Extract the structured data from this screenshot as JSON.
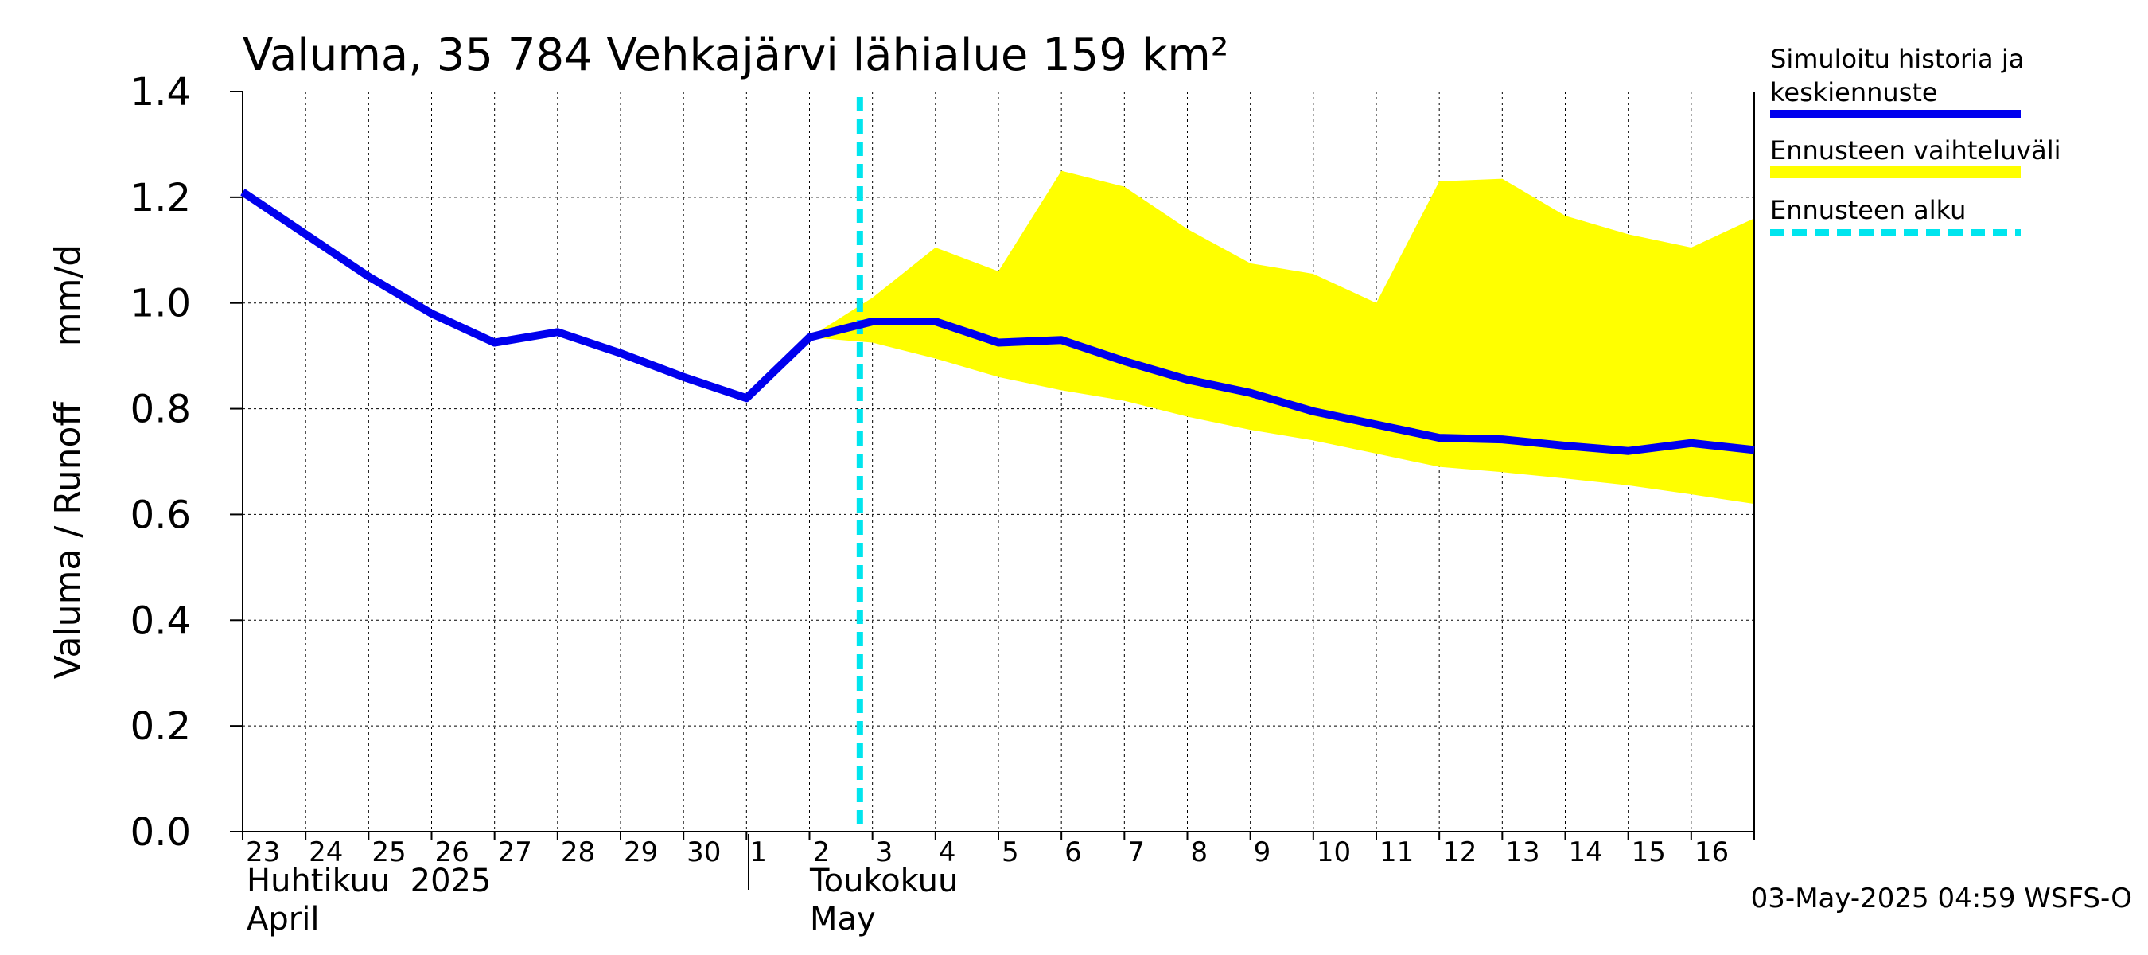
{
  "chart_data": {
    "type": "line",
    "title": "Valuma, 35 784 Vehkajärvi lähialue 159 km²",
    "ylabel": "Valuma / Runoff     mm/d",
    "ylim": [
      0,
      1.4
    ],
    "yticks": [
      0.0,
      0.2,
      0.4,
      0.6,
      0.8,
      1.0,
      1.2,
      1.4
    ],
    "ytick_labels": [
      "0.0",
      "0.2",
      "0.4",
      "0.6",
      "0.8",
      "1.0",
      "1.2",
      "1.4"
    ],
    "x_day_labels": [
      "23",
      "24",
      "25",
      "26",
      "27",
      "28",
      "29",
      "30",
      "1",
      "2",
      "3",
      "4",
      "5",
      "6",
      "7",
      "8",
      "9",
      "10",
      "11",
      "12",
      "13",
      "14",
      "15",
      "16"
    ],
    "month_labels": [
      {
        "fi": "Huhtikuu  2025",
        "en": "April"
      },
      {
        "fi": "Toukokuu",
        "en": "May"
      }
    ],
    "forecast_start": "2025-05-03",
    "series": [
      {
        "name": "Simuloitu historia ja keskiennuste",
        "color": "#0000ee",
        "x": [
          "2025-04-23",
          "2025-04-24",
          "2025-04-25",
          "2025-04-26",
          "2025-04-27",
          "2025-04-28",
          "2025-04-29",
          "2025-04-30",
          "2025-05-01",
          "2025-05-02",
          "2025-05-03",
          "2025-05-04",
          "2025-05-05",
          "2025-05-06",
          "2025-05-07",
          "2025-05-08",
          "2025-05-09",
          "2025-05-10",
          "2025-05-11",
          "2025-05-12",
          "2025-05-13",
          "2025-05-14",
          "2025-05-15",
          "2025-05-16",
          "2025-05-17"
        ],
        "values": [
          1.21,
          1.13,
          1.05,
          0.98,
          0.925,
          0.945,
          0.905,
          0.86,
          0.82,
          0.935,
          0.965,
          0.965,
          0.925,
          0.93,
          0.89,
          0.855,
          0.83,
          0.795,
          0.77,
          0.745,
          0.742,
          0.73,
          0.72,
          0.735,
          0.722
        ]
      },
      {
        "name": "Ennusteen vaihteluväli",
        "color": "#ffff00",
        "x": [
          "2025-05-02",
          "2025-05-03",
          "2025-05-04",
          "2025-05-05",
          "2025-05-06",
          "2025-05-07",
          "2025-05-08",
          "2025-05-09",
          "2025-05-10",
          "2025-05-11",
          "2025-05-12",
          "2025-05-13",
          "2025-05-14",
          "2025-05-15",
          "2025-05-16",
          "2025-05-17"
        ],
        "upper": [
          0.935,
          1.01,
          1.105,
          1.06,
          1.25,
          1.22,
          1.14,
          1.075,
          1.055,
          1.0,
          1.23,
          1.235,
          1.165,
          1.13,
          1.105,
          1.16
        ],
        "lower": [
          0.935,
          0.925,
          0.895,
          0.86,
          0.835,
          0.815,
          0.785,
          0.76,
          0.74,
          0.715,
          0.69,
          0.68,
          0.668,
          0.655,
          0.638,
          0.62
        ]
      }
    ],
    "legend": [
      {
        "label": "Simuloitu historia ja\nkeskiennuste",
        "color": "#0000ee",
        "style": "solid"
      },
      {
        "label": "Ennusteen vaihteluväli",
        "color": "#ffff00",
        "style": "solid"
      },
      {
        "label": "Ennusteen alku",
        "color": "#00e5ee",
        "style": "dashed"
      }
    ],
    "legend_position": "right",
    "grid": true,
    "timestamp": "03-May-2025 04:59 WSFS-O"
  }
}
